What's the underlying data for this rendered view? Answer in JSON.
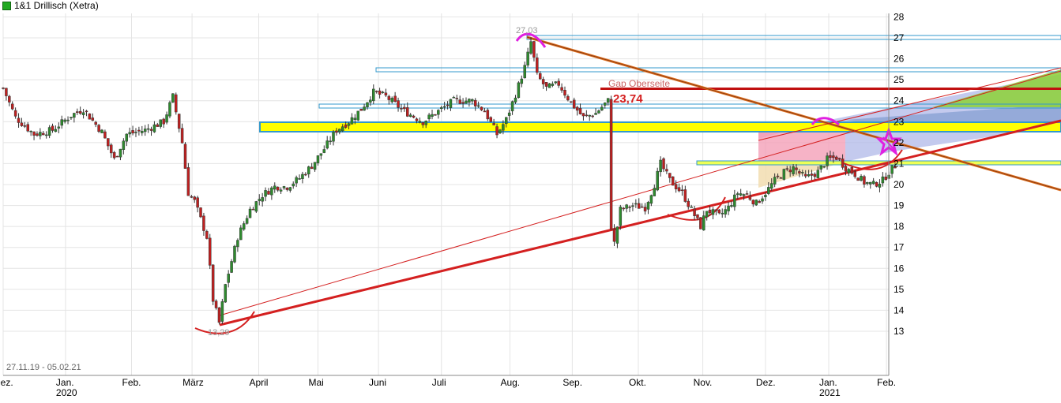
{
  "chart_data": {
    "type": "candlestick",
    "title": "1&1 Drillisch (Xetra)",
    "date_range": "27.11.19 - 05.02.21",
    "ylim": [
      12.2,
      28.6
    ],
    "y_ticks": [
      13,
      14,
      15,
      16,
      17,
      18,
      19,
      20,
      21,
      22,
      23,
      24,
      25,
      26,
      27,
      28
    ],
    "x_ticks": [
      {
        "label": "Dez.",
        "year": "",
        "t": 0
      },
      {
        "label": "Jan.",
        "year": "2020",
        "t": 20.2
      },
      {
        "label": "Feb.",
        "year": "",
        "t": 41.6
      },
      {
        "label": "März",
        "year": "",
        "t": 61.2
      },
      {
        "label": "April",
        "year": "",
        "t": 82.8
      },
      {
        "label": "Mai",
        "year": "",
        "t": 102.0
      },
      {
        "label": "Juni",
        "year": "",
        "t": 121.6
      },
      {
        "label": "Juli",
        "year": "",
        "t": 142.0
      },
      {
        "label": "Aug.",
        "year": "",
        "t": 164.2
      },
      {
        "label": "Sep.",
        "year": "",
        "t": 184.4
      },
      {
        "label": "Okt.",
        "year": "",
        "t": 205.8
      },
      {
        "label": "Nov.",
        "year": "",
        "t": 226.7
      },
      {
        "label": "Dez.",
        "year": "",
        "t": 247.0
      },
      {
        "label": "Jan.",
        "year": "2021",
        "t": 267.5
      },
      {
        "label": "Feb.",
        "year": "",
        "t": 286.2
      }
    ],
    "price_keypoints": [
      [
        0,
        24.6
      ],
      [
        4,
        23.2
      ],
      [
        10,
        22.4
      ],
      [
        16,
        22.6
      ],
      [
        22,
        23.3
      ],
      [
        26,
        23.6
      ],
      [
        32,
        22.5
      ],
      [
        36,
        21.2
      ],
      [
        40,
        22.4
      ],
      [
        46,
        22.6
      ],
      [
        52,
        23.0
      ],
      [
        55,
        24.2
      ],
      [
        58,
        22.0
      ],
      [
        60,
        19.6
      ],
      [
        62,
        19.2
      ],
      [
        66,
        17.5
      ],
      [
        68,
        14.5
      ],
      [
        70,
        13.4
      ],
      [
        72,
        15.2
      ],
      [
        76,
        17.5
      ],
      [
        80,
        18.8
      ],
      [
        84,
        19.5
      ],
      [
        88,
        19.9
      ],
      [
        92,
        19.9
      ],
      [
        96,
        20.3
      ],
      [
        100,
        20.9
      ],
      [
        104,
        21.7
      ],
      [
        108,
        22.6
      ],
      [
        112,
        23.0
      ],
      [
        116,
        23.6
      ],
      [
        120,
        24.4
      ],
      [
        124,
        24.2
      ],
      [
        130,
        23.5
      ],
      [
        136,
        23.0
      ],
      [
        142,
        23.6
      ],
      [
        146,
        24.0
      ],
      [
        152,
        24.0
      ],
      [
        156,
        23.5
      ],
      [
        160,
        22.4
      ],
      [
        163,
        23.1
      ],
      [
        166,
        24.3
      ],
      [
        169,
        25.6
      ],
      [
        171,
        26.8
      ],
      [
        173,
        25.2
      ],
      [
        176,
        24.6
      ],
      [
        180,
        24.8
      ],
      [
        184,
        23.9
      ],
      [
        188,
        23.2
      ],
      [
        192,
        23.4
      ],
      [
        196,
        24.0
      ],
      [
        197,
        18.0
      ],
      [
        198,
        17.2
      ],
      [
        200,
        18.8
      ],
      [
        204,
        19.0
      ],
      [
        208,
        18.9
      ],
      [
        211,
        20.0
      ],
      [
        213,
        21.0
      ],
      [
        216,
        20.2
      ],
      [
        220,
        19.6
      ],
      [
        223,
        18.8
      ],
      [
        226,
        18.0
      ],
      [
        228,
        18.8
      ],
      [
        232,
        18.5
      ],
      [
        235,
        18.9
      ],
      [
        238,
        19.6
      ],
      [
        241,
        19.5
      ],
      [
        244,
        19.1
      ],
      [
        247,
        19.6
      ],
      [
        250,
        20.2
      ],
      [
        253,
        20.6
      ],
      [
        256,
        20.8
      ],
      [
        260,
        20.3
      ],
      [
        264,
        20.6
      ],
      [
        267,
        21.2
      ],
      [
        270,
        21.3
      ],
      [
        273,
        20.8
      ],
      [
        276,
        20.5
      ],
      [
        279,
        20.1
      ],
      [
        282,
        20.0
      ],
      [
        285,
        20.2
      ],
      [
        287,
        20.6
      ],
      [
        289,
        20.9
      ]
    ],
    "annotations": {
      "high_label": "27,03",
      "low_label": "13,29",
      "gap_label": "Gap Oberseite",
      "gap_value": "23,74"
    },
    "colors": {
      "up_candle": "#2e8b2e",
      "down_candle": "#c02020",
      "support_trend": "#d42020",
      "resistance_trend": "#e07020",
      "yellow_band": "#ffff00",
      "band_border": "#3399cc",
      "gap_line": "#c01010",
      "pink_zone": "#f4a0b8",
      "lavender_zone": "#b0b8e8",
      "green_zone": "#90d040",
      "tan_zone": "#f2ddb0",
      "magenta": "#e020e0",
      "grid": "#e4e4e4"
    }
  }
}
